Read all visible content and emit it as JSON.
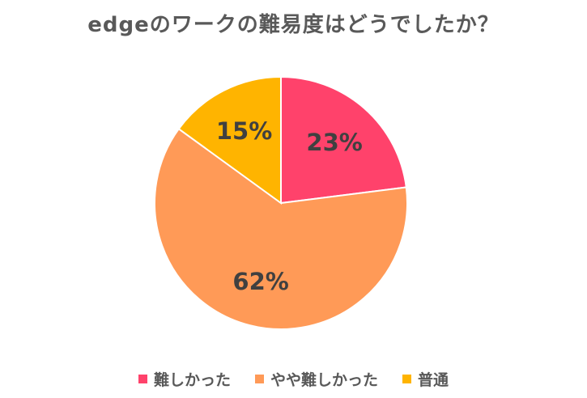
{
  "chart_data": {
    "type": "pie",
    "title": "edgeのワークの難易度はどうでしたか？",
    "categories": [
      "難しかった",
      "やや難しかった",
      "普通"
    ],
    "values": [
      23,
      62,
      15
    ],
    "value_labels": [
      "23%",
      "62%",
      "15%"
    ],
    "colors": [
      "#ff426b",
      "#ff9a57",
      "#ffb400"
    ],
    "legend_position": "bottom"
  }
}
